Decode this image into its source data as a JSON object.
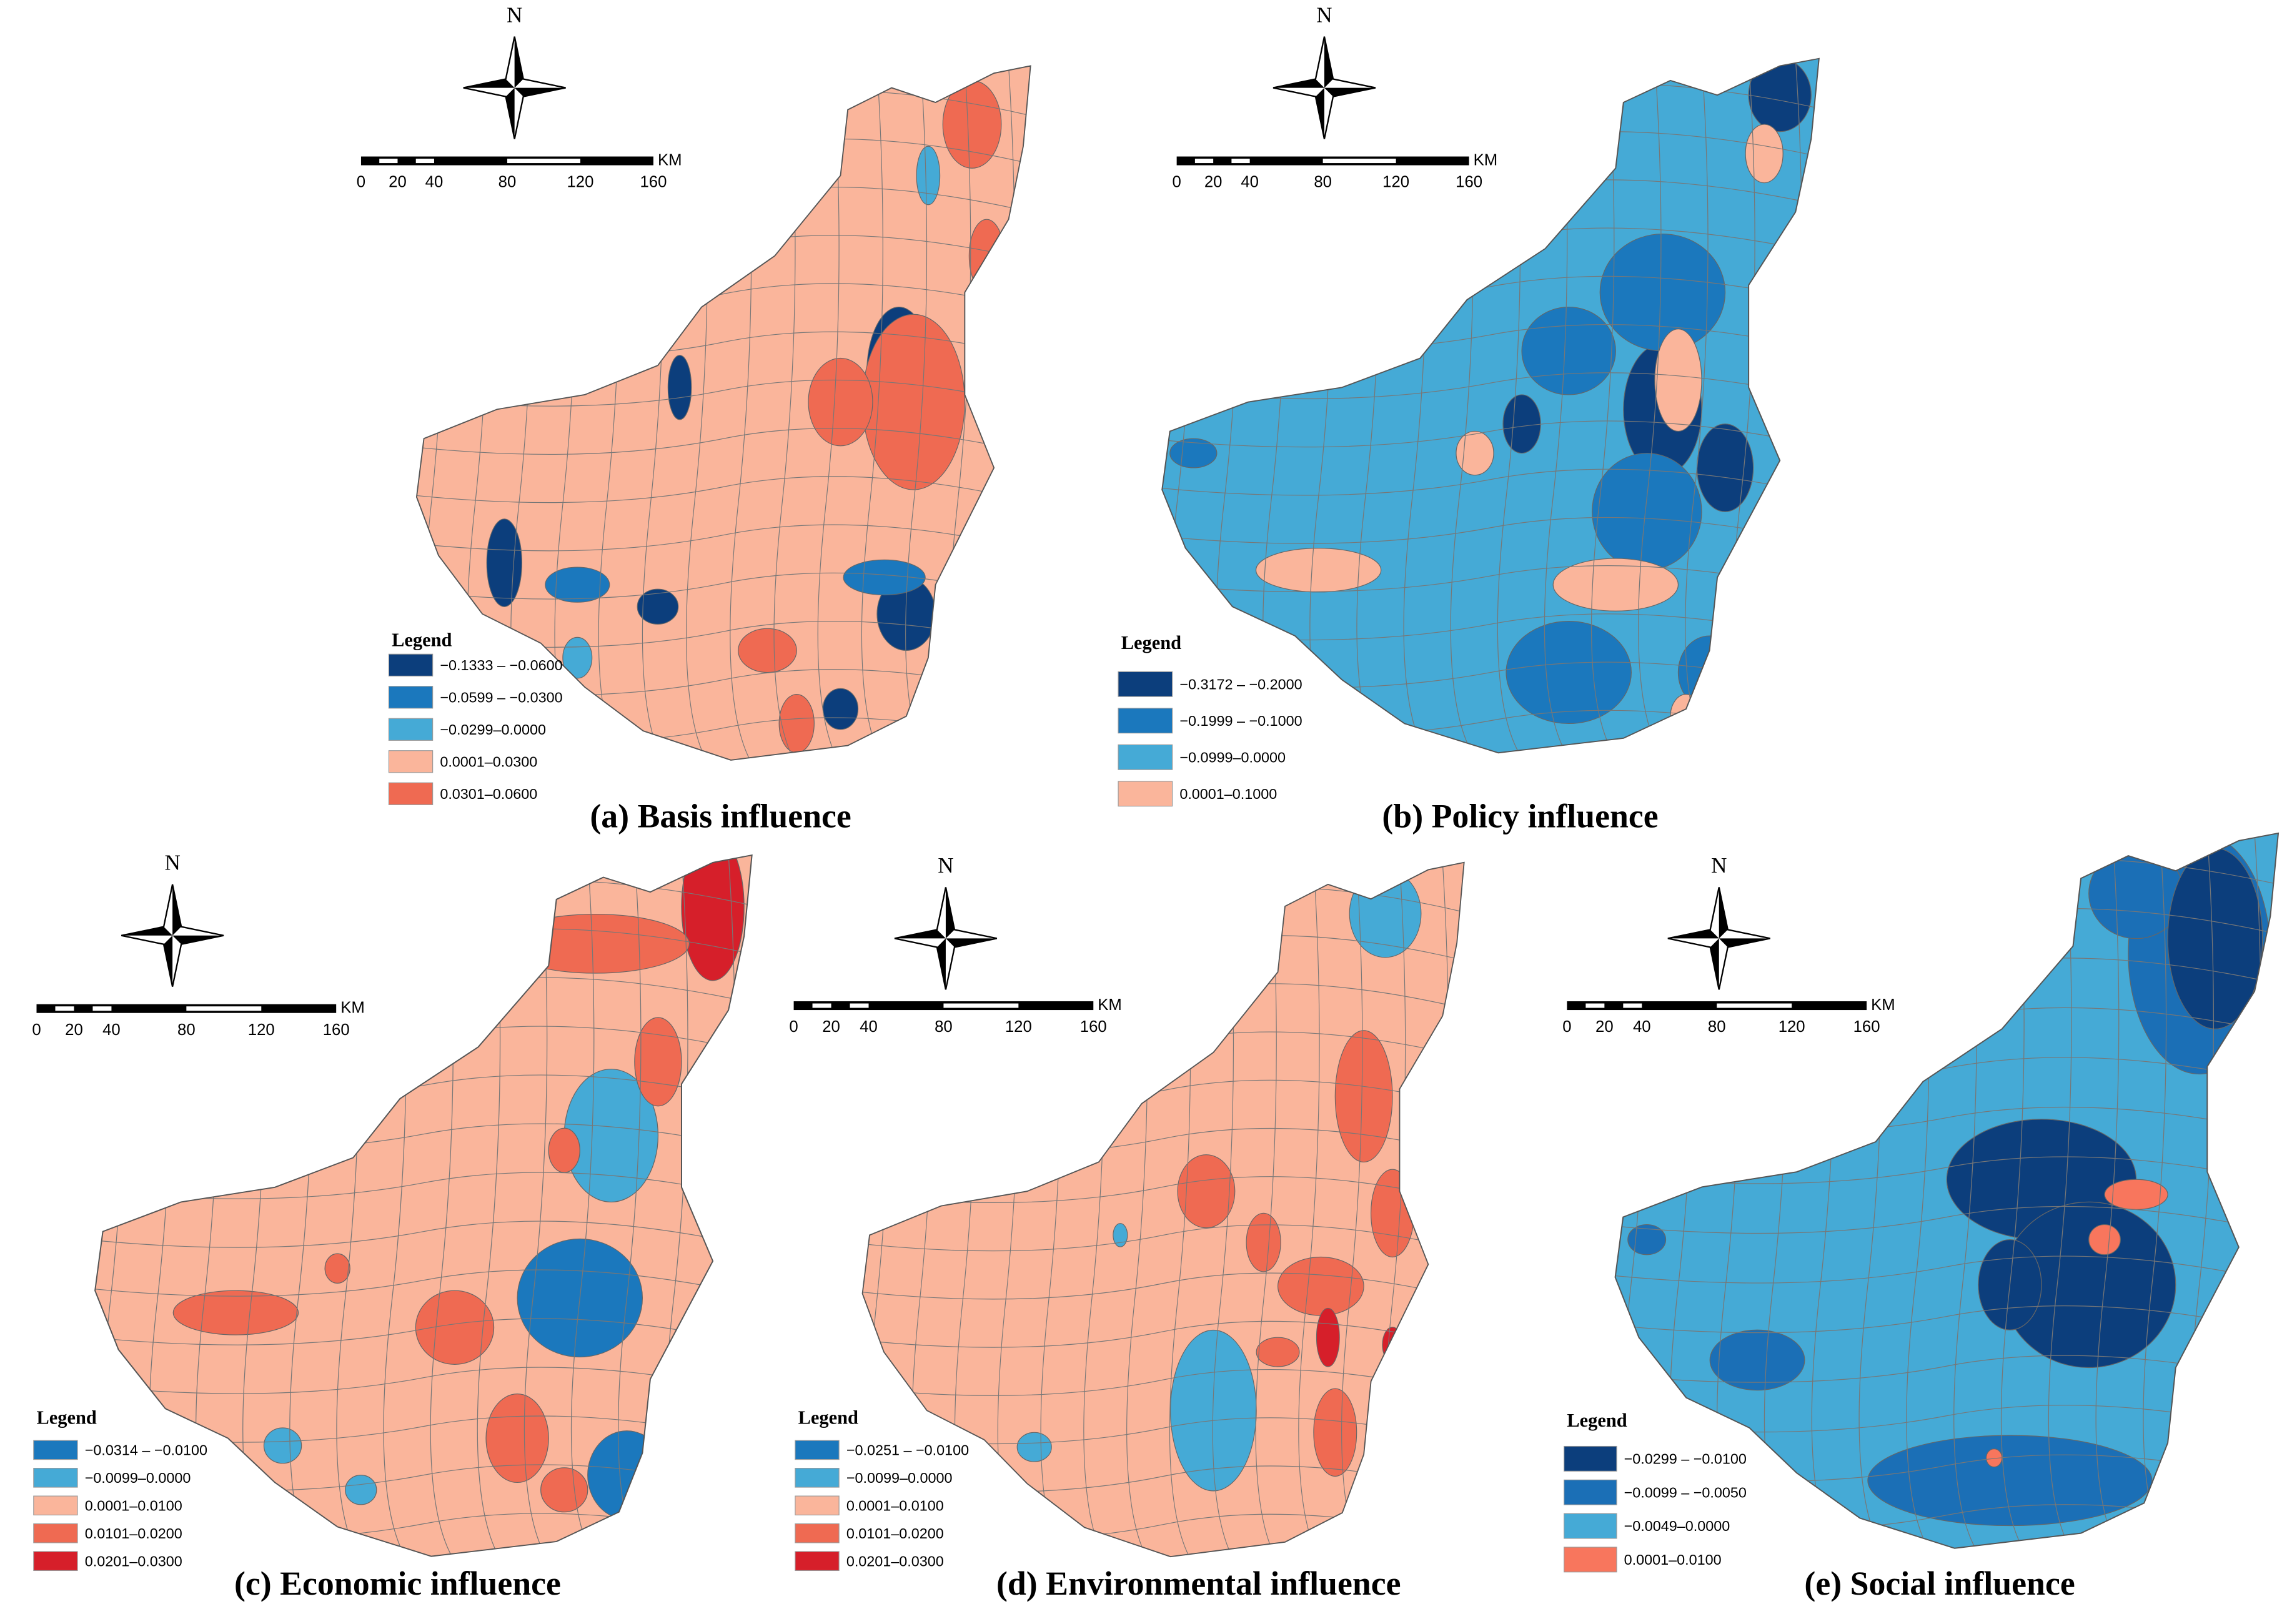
{
  "panels": [
    {
      "title": "(a) Basis influence",
      "north": "N",
      "scale": {
        "ticks": [
          0,
          20,
          40,
          80,
          120,
          160
        ],
        "unit": "KM"
      },
      "legend": {
        "title": "Legend",
        "items": [
          {
            "label": "−0.1333 – −0.0600",
            "color": "#0c3e7c"
          },
          {
            "label": "−0.0599 – −0.0300",
            "color": "#1b78bd"
          },
          {
            "label": "−0.0299–0.0000",
            "color": "#45aad6"
          },
          {
            "label": "0.0001–0.0300",
            "color": "#fab59b"
          },
          {
            "label": "0.0301–0.0600",
            "color": "#ef6a52"
          }
        ]
      }
    },
    {
      "title": "(b) Policy influence",
      "north": "N",
      "scale": {
        "ticks": [
          0,
          20,
          40,
          80,
          120,
          160
        ],
        "unit": "KM"
      },
      "legend": {
        "title": "Legend",
        "items": [
          {
            "label": "−0.3172 – −0.2000",
            "color": "#0c3e7c"
          },
          {
            "label": "−0.1999 – −0.1000",
            "color": "#1b78bd"
          },
          {
            "label": "−0.0999–0.0000",
            "color": "#45aad6"
          },
          {
            "label": "0.0001–0.1000",
            "color": "#fab59b"
          }
        ]
      }
    },
    {
      "title": "(c) Economic influence",
      "north": "N",
      "scale": {
        "ticks": [
          0,
          20,
          40,
          80,
          120,
          160
        ],
        "unit": "KM"
      },
      "legend": {
        "title": "Legend",
        "items": [
          {
            "label": "−0.0314 – −0.0100",
            "color": "#1b78bd"
          },
          {
            "label": "−0.0099–0.0000",
            "color": "#45aad6"
          },
          {
            "label": "0.0001–0.0100",
            "color": "#fab59b"
          },
          {
            "label": "0.0101–0.0200",
            "color": "#ef6a52"
          },
          {
            "label": "0.0201–0.0300",
            "color": "#d61f2a"
          }
        ]
      }
    },
    {
      "title": "(d) Environmental influence",
      "north": "N",
      "scale": {
        "ticks": [
          0,
          20,
          40,
          80,
          120,
          160
        ],
        "unit": "KM"
      },
      "legend": {
        "title": "Legend",
        "items": [
          {
            "label": "−0.0251 – −0.0100",
            "color": "#1b78bd"
          },
          {
            "label": "−0.0099–0.0000",
            "color": "#45aad6"
          },
          {
            "label": "0.0001–0.0100",
            "color": "#fab59b"
          },
          {
            "label": "0.0101–0.0200",
            "color": "#ef6a52"
          },
          {
            "label": "0.0201–0.0300",
            "color": "#d61f2a"
          }
        ]
      }
    },
    {
      "title": "(e) Social influence",
      "north": "N",
      "scale": {
        "ticks": [
          0,
          20,
          40,
          80,
          120,
          160
        ],
        "unit": "KM"
      },
      "legend": {
        "title": "Legend",
        "items": [
          {
            "label": "−0.0299 – −0.0100",
            "color": "#0c3e7c"
          },
          {
            "label": "−0.0099 – −0.0050",
            "color": "#1b6fb6"
          },
          {
            "label": "−0.0049–0.0000",
            "color": "#45aad6"
          },
          {
            "label": "0.0001–0.0100",
            "color": "#f8765d"
          }
        ]
      }
    }
  ]
}
